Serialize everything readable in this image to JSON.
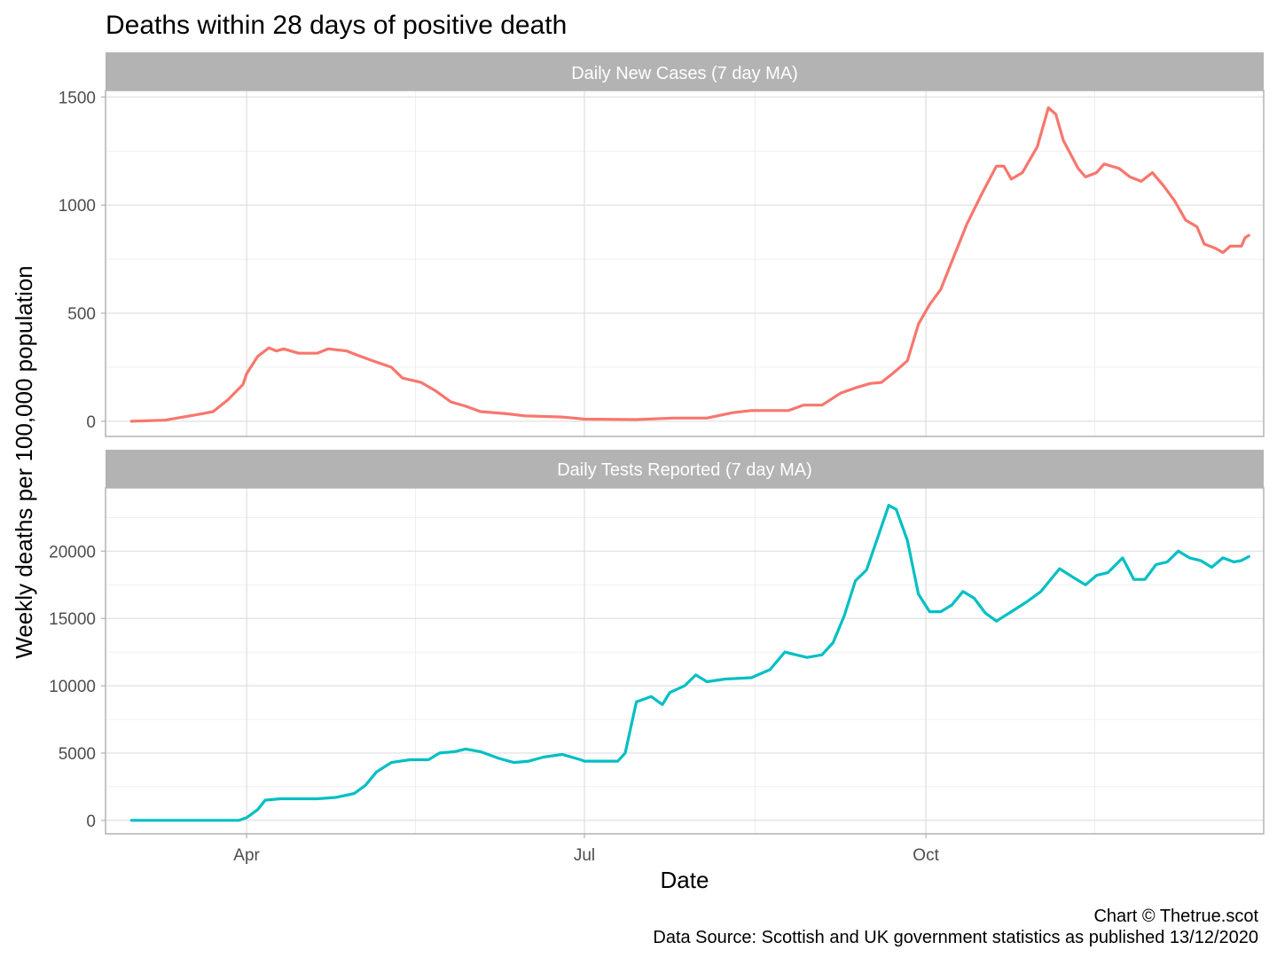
{
  "chart_data": {
    "type": "line",
    "title": "Deaths within 28 days of positive death",
    "xlabel": "Date",
    "ylabel": "Weekly deaths per 100,000 population",
    "caption_line1": "Chart © Thetrue.scot",
    "caption_line2": "Data Source: Scottish and UK government statistics as published 13/12/2020",
    "x_ticks": [
      {
        "date": "2020-04-01",
        "label": "Apr"
      },
      {
        "date": "2020-07-01",
        "label": "Jul"
      },
      {
        "date": "2020-10-01",
        "label": "Oct"
      }
    ],
    "x_range": [
      "2020-02-23",
      "2020-12-31"
    ],
    "grid": true,
    "panels": [
      {
        "strip": "Daily New Cases (7 day MA)",
        "color": "#F8766D",
        "ylim": [
          -70,
          1530
        ],
        "y_ticks": [
          0,
          500,
          1000,
          1500
        ],
        "points": [
          [
            "2020-03-01",
            0
          ],
          [
            "2020-03-10",
            5
          ],
          [
            "2020-03-15",
            20
          ],
          [
            "2020-03-20",
            35
          ],
          [
            "2020-03-23",
            45
          ],
          [
            "2020-03-27",
            100
          ],
          [
            "2020-03-31",
            170
          ],
          [
            "2020-04-01",
            220
          ],
          [
            "2020-04-04",
            300
          ],
          [
            "2020-04-07",
            340
          ],
          [
            "2020-04-09",
            325
          ],
          [
            "2020-04-11",
            335
          ],
          [
            "2020-04-15",
            315
          ],
          [
            "2020-04-20",
            315
          ],
          [
            "2020-04-23",
            335
          ],
          [
            "2020-04-28",
            325
          ],
          [
            "2020-05-01",
            305
          ],
          [
            "2020-05-05",
            280
          ],
          [
            "2020-05-10",
            250
          ],
          [
            "2020-05-13",
            200
          ],
          [
            "2020-05-18",
            180
          ],
          [
            "2020-05-22",
            140
          ],
          [
            "2020-05-26",
            90
          ],
          [
            "2020-05-30",
            70
          ],
          [
            "2020-06-03",
            45
          ],
          [
            "2020-06-10",
            35
          ],
          [
            "2020-06-15",
            25
          ],
          [
            "2020-06-25",
            20
          ],
          [
            "2020-07-01",
            10
          ],
          [
            "2020-07-15",
            8
          ],
          [
            "2020-07-25",
            15
          ],
          [
            "2020-08-03",
            15
          ],
          [
            "2020-08-10",
            40
          ],
          [
            "2020-08-15",
            50
          ],
          [
            "2020-08-25",
            50
          ],
          [
            "2020-08-29",
            75
          ],
          [
            "2020-09-03",
            75
          ],
          [
            "2020-09-08",
            130
          ],
          [
            "2020-09-12",
            155
          ],
          [
            "2020-09-16",
            175
          ],
          [
            "2020-09-19",
            180
          ],
          [
            "2020-09-22",
            220
          ],
          [
            "2020-09-26",
            280
          ],
          [
            "2020-09-29",
            450
          ],
          [
            "2020-10-02",
            540
          ],
          [
            "2020-10-05",
            610
          ],
          [
            "2020-10-08",
            740
          ],
          [
            "2020-10-12",
            910
          ],
          [
            "2020-10-16",
            1050
          ],
          [
            "2020-10-20",
            1180
          ],
          [
            "2020-10-22",
            1180
          ],
          [
            "2020-10-24",
            1120
          ],
          [
            "2020-10-27",
            1150
          ],
          [
            "2020-10-31",
            1270
          ],
          [
            "2020-11-03",
            1450
          ],
          [
            "2020-11-05",
            1420
          ],
          [
            "2020-11-07",
            1300
          ],
          [
            "2020-11-11",
            1170
          ],
          [
            "2020-11-13",
            1130
          ],
          [
            "2020-11-16",
            1150
          ],
          [
            "2020-11-18",
            1190
          ],
          [
            "2020-11-22",
            1170
          ],
          [
            "2020-11-25",
            1130
          ],
          [
            "2020-11-28",
            1110
          ],
          [
            "2020-12-01",
            1150
          ],
          [
            "2020-12-04",
            1090
          ],
          [
            "2020-12-07",
            1020
          ],
          [
            "2020-12-10",
            930
          ],
          [
            "2020-12-13",
            900
          ],
          [
            "2020-12-15",
            820
          ],
          [
            "2020-12-18",
            800
          ],
          [
            "2020-12-20",
            780
          ],
          [
            "2020-12-22",
            810
          ],
          [
            "2020-12-25",
            810
          ],
          [
            "2020-12-26",
            850
          ],
          [
            "2020-12-27",
            860
          ]
        ]
      },
      {
        "strip": "Daily Tests Reported (7 day MA)",
        "color": "#00BFC4",
        "ylim": [
          -1000,
          24700
        ],
        "y_ticks": [
          0,
          5000,
          10000,
          15000,
          20000
        ],
        "points": [
          [
            "2020-03-01",
            0
          ],
          [
            "2020-03-30",
            0
          ],
          [
            "2020-04-01",
            200
          ],
          [
            "2020-04-04",
            800
          ],
          [
            "2020-04-06",
            1500
          ],
          [
            "2020-04-10",
            1600
          ],
          [
            "2020-04-20",
            1600
          ],
          [
            "2020-04-25",
            1700
          ],
          [
            "2020-04-30",
            2000
          ],
          [
            "2020-05-03",
            2600
          ],
          [
            "2020-05-06",
            3600
          ],
          [
            "2020-05-10",
            4300
          ],
          [
            "2020-05-15",
            4500
          ],
          [
            "2020-05-20",
            4500
          ],
          [
            "2020-05-23",
            5000
          ],
          [
            "2020-05-27",
            5100
          ],
          [
            "2020-05-30",
            5300
          ],
          [
            "2020-06-03",
            5100
          ],
          [
            "2020-06-08",
            4600
          ],
          [
            "2020-06-12",
            4300
          ],
          [
            "2020-06-16",
            4400
          ],
          [
            "2020-06-20",
            4700
          ],
          [
            "2020-06-25",
            4900
          ],
          [
            "2020-06-30",
            4500
          ],
          [
            "2020-07-01",
            4400
          ],
          [
            "2020-07-10",
            4400
          ],
          [
            "2020-07-12",
            5000
          ],
          [
            "2020-07-15",
            8800
          ],
          [
            "2020-07-19",
            9200
          ],
          [
            "2020-07-22",
            8600
          ],
          [
            "2020-07-24",
            9500
          ],
          [
            "2020-07-28",
            10000
          ],
          [
            "2020-07-31",
            10800
          ],
          [
            "2020-08-03",
            10300
          ],
          [
            "2020-08-08",
            10500
          ],
          [
            "2020-08-15",
            10600
          ],
          [
            "2020-08-20",
            11200
          ],
          [
            "2020-08-24",
            12500
          ],
          [
            "2020-08-27",
            12300
          ],
          [
            "2020-08-30",
            12100
          ],
          [
            "2020-09-03",
            12300
          ],
          [
            "2020-09-06",
            13200
          ],
          [
            "2020-09-09",
            15200
          ],
          [
            "2020-09-12",
            17800
          ],
          [
            "2020-09-15",
            18600
          ],
          [
            "2020-09-18",
            21000
          ],
          [
            "2020-09-21",
            23400
          ],
          [
            "2020-09-23",
            23100
          ],
          [
            "2020-09-26",
            20800
          ],
          [
            "2020-09-29",
            16800
          ],
          [
            "2020-10-02",
            15500
          ],
          [
            "2020-10-05",
            15500
          ],
          [
            "2020-10-08",
            16000
          ],
          [
            "2020-10-11",
            17000
          ],
          [
            "2020-10-14",
            16500
          ],
          [
            "2020-10-17",
            15400
          ],
          [
            "2020-10-20",
            14800
          ],
          [
            "2020-10-24",
            15500
          ],
          [
            "2020-10-28",
            16200
          ],
          [
            "2020-11-01",
            17000
          ],
          [
            "2020-11-06",
            18700
          ],
          [
            "2020-11-10",
            18000
          ],
          [
            "2020-11-13",
            17500
          ],
          [
            "2020-11-16",
            18200
          ],
          [
            "2020-11-19",
            18400
          ],
          [
            "2020-11-23",
            19500
          ],
          [
            "2020-11-26",
            17900
          ],
          [
            "2020-11-29",
            17900
          ],
          [
            "2020-12-02",
            19000
          ],
          [
            "2020-12-05",
            19200
          ],
          [
            "2020-12-08",
            20000
          ],
          [
            "2020-12-11",
            19500
          ],
          [
            "2020-12-14",
            19300
          ],
          [
            "2020-12-17",
            18800
          ],
          [
            "2020-12-20",
            19500
          ],
          [
            "2020-12-23",
            19200
          ],
          [
            "2020-12-25",
            19300
          ],
          [
            "2020-12-27",
            19600
          ]
        ]
      }
    ]
  }
}
